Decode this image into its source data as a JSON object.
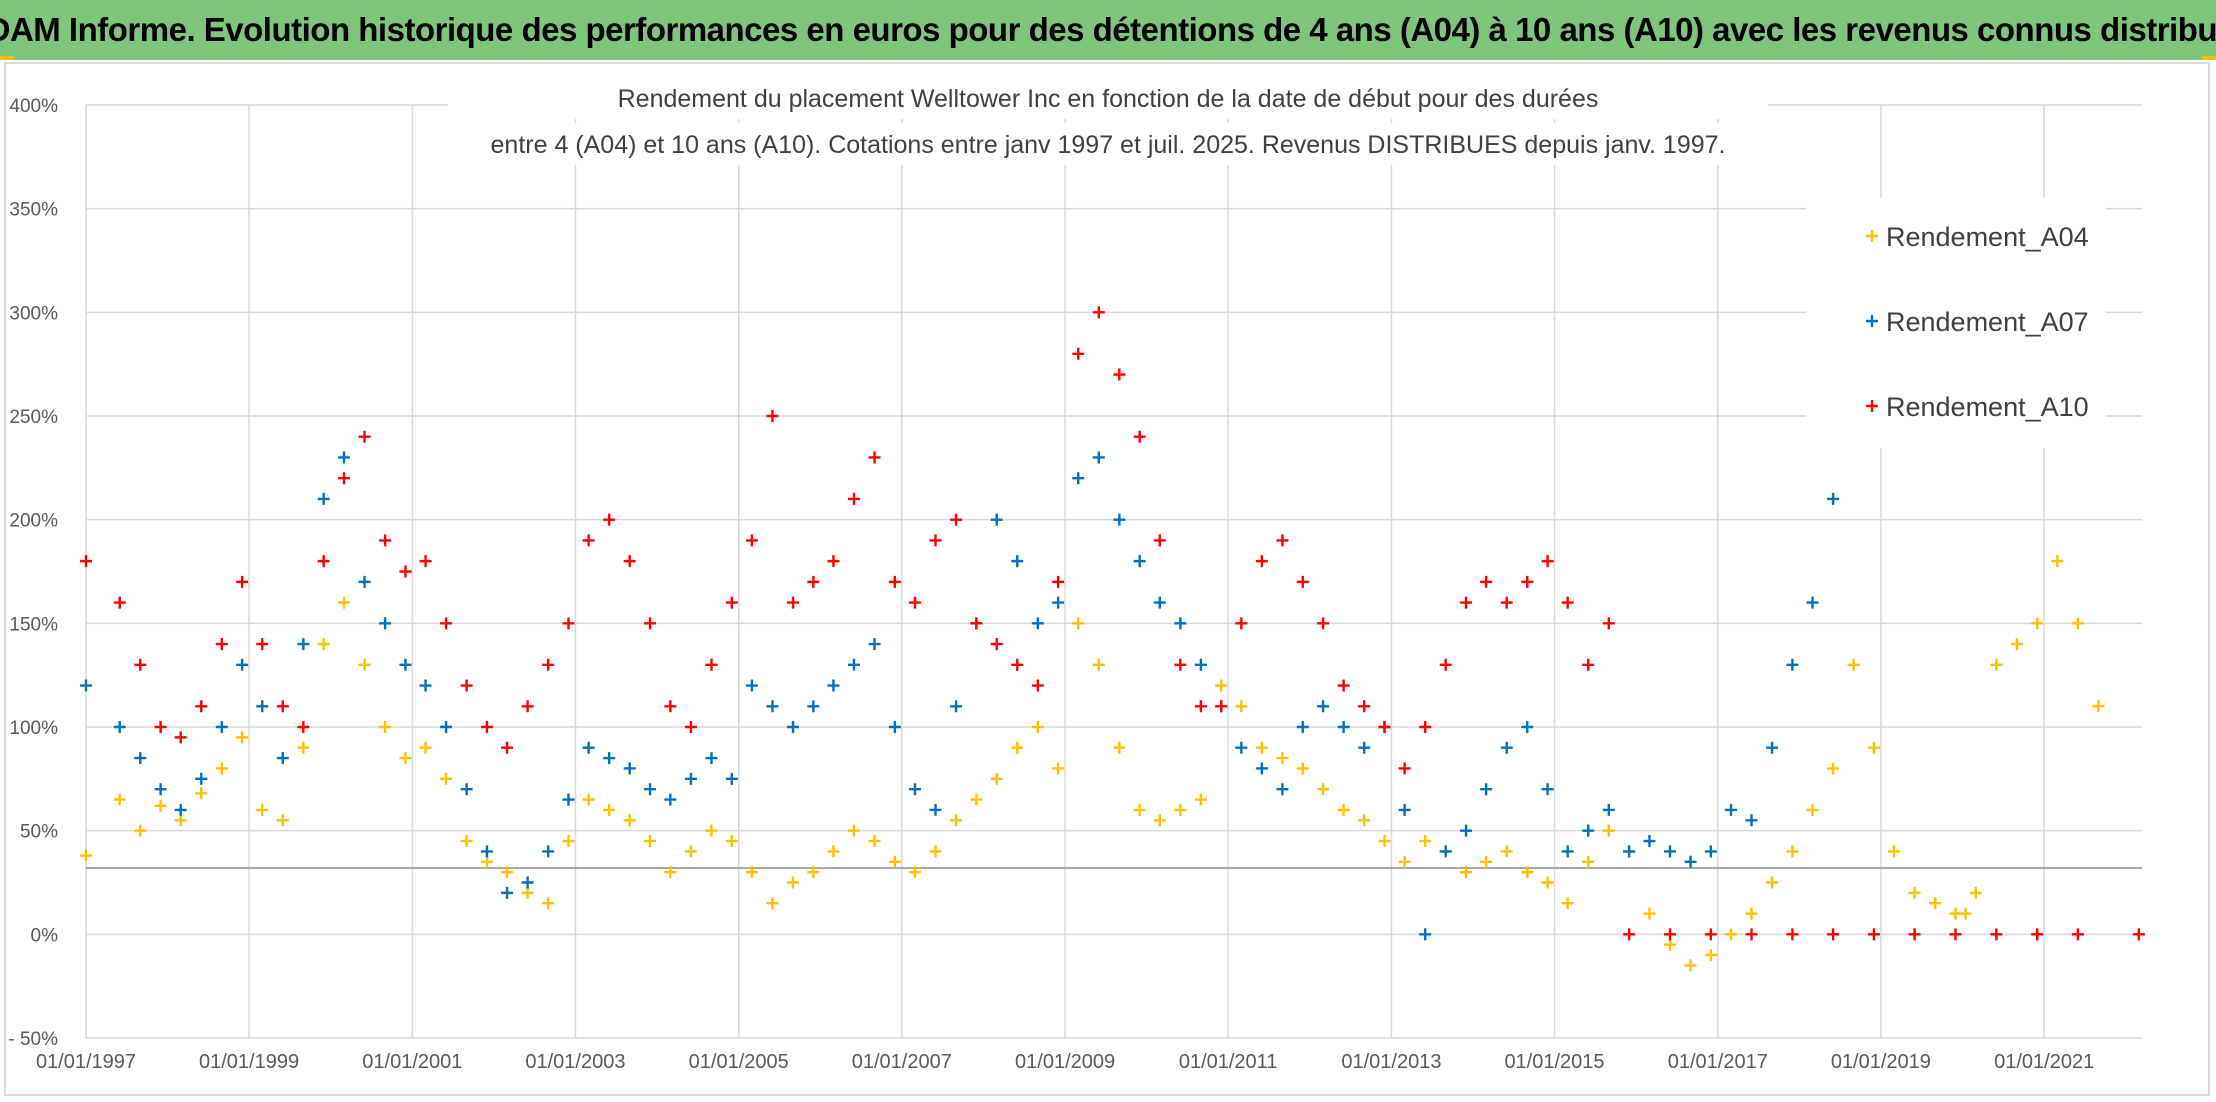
{
  "header": {
    "title": "ADAM Informe. Evolution historique des performances en euros pour des détentions de 4 ans (A04) à 10 ans (A10) avec les revenus connus distribués"
  },
  "chart_data": {
    "type": "scatter",
    "title_lines": [
      "Rendement du placement Welltower Inc en fonction de la date de début pour des durées",
      "entre 4 (A04) et 10 ans (A10). Cotations entre janv 1997 et juil. 2025. Revenus DISTRIBUES depuis janv. 1997."
    ],
    "xlabel": "",
    "ylabel": "",
    "x_range": [
      "1997-01-01",
      "2022-03-15"
    ],
    "ylim": [
      -50,
      400
    ],
    "y_ticks": [
      -50,
      0,
      50,
      100,
      150,
      200,
      250,
      300,
      350,
      400
    ],
    "y_tick_labels": [
      "- 50%",
      "0%",
      "50%",
      "100%",
      "150%",
      "200%",
      "250%",
      "300%",
      "350%",
      "400%"
    ],
    "x_ticks": [
      "1997-01-01",
      "1999-01-01",
      "2001-01-01",
      "2003-01-01",
      "2005-01-01",
      "2007-01-01",
      "2009-01-01",
      "2011-01-01",
      "2013-01-01",
      "2015-01-01",
      "2017-01-01",
      "2019-01-01",
      "2021-01-01"
    ],
    "x_tick_labels": [
      "01/01/1997",
      "01/01/1999",
      "01/01/2001",
      "01/01/2003",
      "01/01/2005",
      "01/01/2007",
      "01/01/2009",
      "01/01/2011",
      "01/01/2013",
      "01/01/2015",
      "01/01/2017",
      "01/01/2019",
      "01/01/2021"
    ],
    "grid": true,
    "reference_line_y": 32,
    "legend_position": "top-right",
    "marker": "+",
    "series": [
      {
        "name": "Rendement_A04",
        "color": "#ffc000",
        "x": [
          "1997-01-01",
          "1997-06-01",
          "1997-09-01",
          "1997-12-01",
          "1998-03-01",
          "1998-06-01",
          "1998-09-01",
          "1998-12-01",
          "1999-03-01",
          "1999-06-01",
          "1999-09-01",
          "1999-12-01",
          "2000-03-01",
          "2000-06-01",
          "2000-09-01",
          "2000-12-01",
          "2001-03-01",
          "2001-06-01",
          "2001-09-01",
          "2001-12-01",
          "2002-03-01",
          "2002-06-01",
          "2002-09-01",
          "2002-12-01",
          "2003-03-01",
          "2003-06-01",
          "2003-09-01",
          "2003-12-01",
          "2004-03-01",
          "2004-06-01",
          "2004-09-01",
          "2004-12-01",
          "2005-03-01",
          "2005-06-01",
          "2005-09-01",
          "2005-12-01",
          "2006-03-01",
          "2006-06-01",
          "2006-09-01",
          "2006-12-01",
          "2007-03-01",
          "2007-06-01",
          "2007-09-01",
          "2007-12-01",
          "2008-03-01",
          "2008-06-01",
          "2008-09-01",
          "2008-12-01",
          "2009-03-01",
          "2009-06-01",
          "2009-09-01",
          "2009-12-01",
          "2010-03-01",
          "2010-06-01",
          "2010-09-01",
          "2010-12-01",
          "2011-03-01",
          "2011-06-01",
          "2011-09-01",
          "2011-12-01",
          "2012-03-01",
          "2012-06-01",
          "2012-09-01",
          "2012-12-01",
          "2013-03-01",
          "2013-06-01",
          "2013-09-01",
          "2013-12-01",
          "2014-03-01",
          "2014-06-01",
          "2014-09-01",
          "2014-12-01",
          "2015-03-01",
          "2015-06-01",
          "2015-09-01",
          "2015-12-01",
          "2016-03-01",
          "2016-06-01",
          "2016-09-01",
          "2016-12-01",
          "2017-03-01",
          "2017-06-01",
          "2017-09-01",
          "2017-12-01",
          "2018-03-01",
          "2018-06-01",
          "2018-09-01",
          "2018-12-01",
          "2019-03-01",
          "2019-06-01",
          "2019-09-01",
          "2019-12-01",
          "2020-01-15",
          "2020-03-01",
          "2020-06-01",
          "2020-09-01",
          "2020-12-01",
          "2021-03-01",
          "2021-06-01",
          "2021-09-01"
        ],
        "values": [
          38,
          65,
          50,
          62,
          55,
          68,
          80,
          95,
          60,
          55,
          90,
          140,
          160,
          130,
          100,
          85,
          90,
          75,
          45,
          35,
          30,
          20,
          15,
          45,
          65,
          60,
          55,
          45,
          30,
          40,
          50,
          45,
          30,
          15,
          25,
          30,
          40,
          50,
          45,
          35,
          30,
          40,
          55,
          65,
          75,
          90,
          100,
          80,
          150,
          130,
          90,
          60,
          55,
          60,
          65,
          120,
          110,
          90,
          85,
          80,
          70,
          60,
          55,
          45,
          35,
          45,
          40,
          30,
          35,
          40,
          30,
          25,
          15,
          35,
          50,
          40,
          10,
          -5,
          -15,
          -10,
          0,
          10,
          25,
          40,
          60,
          80,
          130,
          90,
          40,
          20,
          15,
          10,
          10,
          20,
          130,
          140,
          150,
          180,
          150,
          110
        ]
      },
      {
        "name": "Rendement_A07",
        "color": "#0070c0",
        "x": [
          "1997-01-01",
          "1997-06-01",
          "1997-09-01",
          "1997-12-01",
          "1998-03-01",
          "1998-06-01",
          "1998-09-01",
          "1998-12-01",
          "1999-03-01",
          "1999-06-01",
          "1999-09-01",
          "1999-12-01",
          "2000-03-01",
          "2000-06-01",
          "2000-09-01",
          "2000-12-01",
          "2001-03-01",
          "2001-06-01",
          "2001-09-01",
          "2001-12-01",
          "2002-03-01",
          "2002-06-01",
          "2002-09-01",
          "2002-12-01",
          "2003-03-01",
          "2003-06-01",
          "2003-09-01",
          "2003-12-01",
          "2004-03-01",
          "2004-06-01",
          "2004-09-01",
          "2004-12-01",
          "2005-03-01",
          "2005-06-01",
          "2005-09-01",
          "2005-12-01",
          "2006-03-01",
          "2006-06-01",
          "2006-09-01",
          "2006-12-01",
          "2007-03-01",
          "2007-06-01",
          "2007-09-01",
          "2007-12-01",
          "2008-03-01",
          "2008-06-01",
          "2008-09-01",
          "2008-12-01",
          "2009-03-01",
          "2009-06-01",
          "2009-09-01",
          "2009-12-01",
          "2010-03-01",
          "2010-06-01",
          "2010-09-01",
          "2010-12-01",
          "2011-03-01",
          "2011-06-01",
          "2011-09-01",
          "2011-12-01",
          "2012-03-01",
          "2012-06-01",
          "2012-09-01",
          "2012-12-01",
          "2013-03-01",
          "2013-06-01",
          "2013-09-01",
          "2013-12-01",
          "2014-03-01",
          "2014-06-01",
          "2014-09-01",
          "2014-12-01",
          "2015-03-01",
          "2015-06-01",
          "2015-09-01",
          "2015-12-01",
          "2016-03-01",
          "2016-06-01",
          "2016-09-01",
          "2016-12-01",
          "2017-03-01",
          "2017-06-01",
          "2017-09-01",
          "2017-12-01",
          "2018-03-01",
          "2018-06-01"
        ],
        "values": [
          120,
          100,
          85,
          70,
          60,
          75,
          100,
          130,
          110,
          85,
          140,
          210,
          230,
          170,
          150,
          130,
          120,
          100,
          70,
          40,
          20,
          25,
          40,
          65,
          90,
          85,
          80,
          70,
          65,
          75,
          85,
          75,
          120,
          110,
          100,
          110,
          120,
          130,
          140,
          100,
          70,
          60,
          110,
          150,
          200,
          180,
          150,
          160,
          220,
          230,
          200,
          180,
          160,
          150,
          130,
          110,
          90,
          80,
          70,
          100,
          110,
          100,
          90,
          100,
          60,
          0,
          40,
          50,
          70,
          90,
          100,
          70,
          40,
          50,
          60,
          40,
          45,
          40,
          35,
          40,
          60,
          55,
          90,
          130,
          160,
          210
        ]
      },
      {
        "name": "Rendement_A10",
        "color": "#ff0000",
        "x": [
          "1997-01-01",
          "1997-06-01",
          "1997-09-01",
          "1997-12-01",
          "1998-03-01",
          "1998-06-01",
          "1998-09-01",
          "1998-12-01",
          "1999-03-01",
          "1999-06-01",
          "1999-09-01",
          "1999-12-01",
          "2000-03-01",
          "2000-06-01",
          "2000-09-01",
          "2000-12-01",
          "2001-03-01",
          "2001-06-01",
          "2001-09-01",
          "2001-12-01",
          "2002-03-01",
          "2002-06-01",
          "2002-09-01",
          "2002-12-01",
          "2003-03-01",
          "2003-06-01",
          "2003-09-01",
          "2003-12-01",
          "2004-03-01",
          "2004-06-01",
          "2004-09-01",
          "2004-12-01",
          "2005-03-01",
          "2005-06-01",
          "2005-09-01",
          "2005-12-01",
          "2006-03-01",
          "2006-06-01",
          "2006-09-01",
          "2006-12-01",
          "2007-03-01",
          "2007-06-01",
          "2007-09-01",
          "2007-12-01",
          "2008-03-01",
          "2008-06-01",
          "2008-09-01",
          "2008-12-01",
          "2009-03-01",
          "2009-06-01",
          "2009-09-01",
          "2009-12-01",
          "2010-03-01",
          "2010-06-01",
          "2010-09-01",
          "2010-12-01",
          "2011-03-01",
          "2011-06-01",
          "2011-09-01",
          "2011-12-01",
          "2012-03-01",
          "2012-06-01",
          "2012-09-01",
          "2012-12-01",
          "2013-03-01",
          "2013-06-01",
          "2013-09-01",
          "2013-12-01",
          "2014-03-01",
          "2014-06-01",
          "2014-09-01",
          "2014-12-01",
          "2015-03-01",
          "2015-06-01",
          "2015-09-01",
          "2015-12-01",
          "2016-06-01",
          "2016-12-01",
          "2017-06-01",
          "2017-12-01",
          "2018-06-01",
          "2018-12-01",
          "2019-06-01",
          "2019-12-01",
          "2020-06-01",
          "2020-12-01",
          "2021-06-01",
          "2022-03-01"
        ],
        "values": [
          180,
          160,
          130,
          100,
          95,
          110,
          140,
          170,
          140,
          110,
          100,
          180,
          220,
          240,
          190,
          175,
          180,
          150,
          120,
          100,
          90,
          110,
          130,
          150,
          190,
          200,
          180,
          150,
          110,
          100,
          130,
          160,
          190,
          250,
          160,
          170,
          180,
          210,
          230,
          170,
          160,
          190,
          200,
          150,
          140,
          130,
          120,
          170,
          280,
          300,
          270,
          240,
          190,
          130,
          110,
          110,
          150,
          180,
          190,
          170,
          150,
          120,
          110,
          100,
          80,
          100,
          130,
          160,
          170,
          160,
          170,
          180,
          160,
          130,
          150,
          0,
          0,
          0,
          0,
          0,
          0,
          0,
          0,
          0,
          0,
          0,
          0,
          0
        ]
      }
    ]
  }
}
